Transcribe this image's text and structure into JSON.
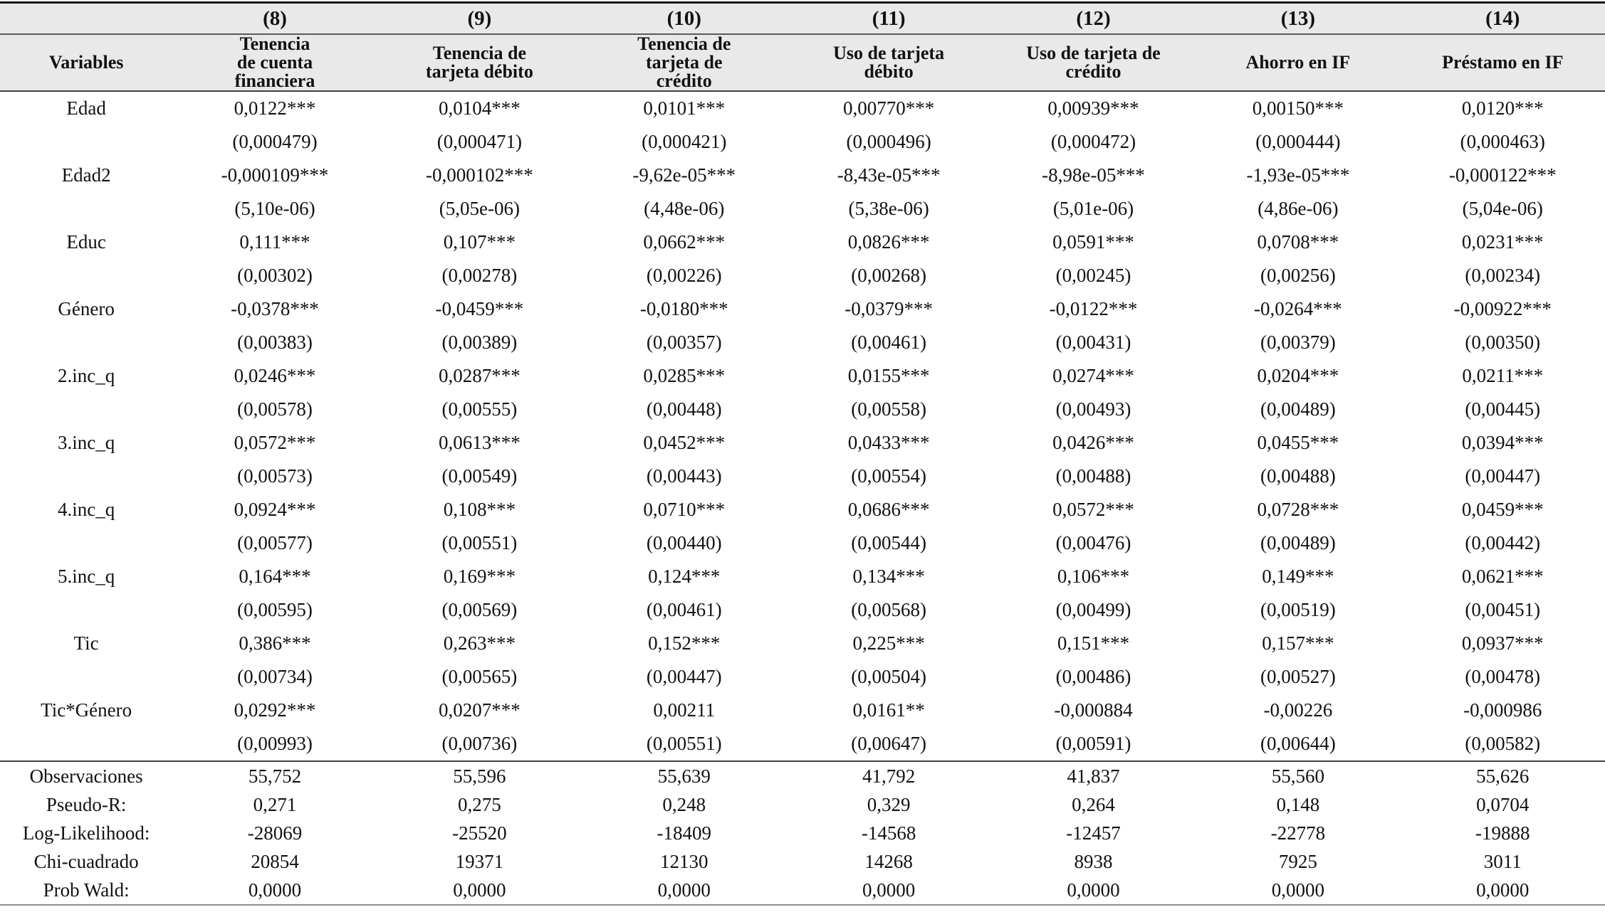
{
  "table": {
    "header_band": [
      "",
      "(8)",
      "(9)",
      "(10)",
      "(11)",
      "(12)",
      "(13)",
      "(14)"
    ],
    "header_row": [
      "Variables",
      "Tenencia\nde cuenta\nfinanciera",
      "Tenencia de\ntarjeta débito",
      "Tenencia de\ntarjeta de\ncrédito",
      "Uso de tarjeta\ndébito",
      "Uso de tarjeta de\ncrédito",
      "Ahorro en IF",
      "Préstamo en IF"
    ],
    "variables": [
      {
        "label": "Edad",
        "coef": [
          "0,0122***",
          "0,0104***",
          "0,0101***",
          "0,00770***",
          "0,00939***",
          "0,00150***",
          "0,0120***"
        ],
        "se": [
          "(0,000479)",
          "(0,000471)",
          "(0,000421)",
          "(0,000496)",
          "(0,000472)",
          "(0,000444)",
          "(0,000463)"
        ]
      },
      {
        "label": "Edad2",
        "coef": [
          "-0,000109***",
          "-0,000102***",
          "-9,62e-05***",
          "-8,43e-05***",
          "-8,98e-05***",
          "-1,93e-05***",
          "-0,000122***"
        ],
        "se": [
          "(5,10e-06)",
          "(5,05e-06)",
          "(4,48e-06)",
          "(5,38e-06)",
          "(5,01e-06)",
          "(4,86e-06)",
          "(5,04e-06)"
        ]
      },
      {
        "label": "Educ",
        "coef": [
          "0,111***",
          "0,107***",
          "0,0662***",
          "0,0826***",
          "0,0591***",
          "0,0708***",
          "0,0231***"
        ],
        "se": [
          "(0,00302)",
          "(0,00278)",
          "(0,00226)",
          "(0,00268)",
          "(0,00245)",
          "(0,00256)",
          "(0,00234)"
        ]
      },
      {
        "label": "Género",
        "coef": [
          "-0,0378***",
          "-0,0459***",
          "-0,0180***",
          "-0,0379***",
          "-0,0122***",
          "-0,0264***",
          "-0,00922***"
        ],
        "se": [
          "(0,00383)",
          "(0,00389)",
          "(0,00357)",
          "(0,00461)",
          "(0,00431)",
          "(0,00379)",
          "(0,00350)"
        ]
      },
      {
        "label": "2.inc_q",
        "coef": [
          "0,0246***",
          "0,0287***",
          "0,0285***",
          "0,0155***",
          "0,0274***",
          "0,0204***",
          "0,0211***"
        ],
        "se": [
          "(0,00578)",
          "(0,00555)",
          "(0,00448)",
          "(0,00558)",
          "(0,00493)",
          "(0,00489)",
          "(0,00445)"
        ]
      },
      {
        "label": "3.inc_q",
        "coef": [
          "0,0572***",
          "0,0613***",
          "0,0452***",
          "0,0433***",
          "0,0426***",
          "0,0455***",
          "0,0394***"
        ],
        "se": [
          "(0,00573)",
          "(0,00549)",
          "(0,00443)",
          "(0,00554)",
          "(0,00488)",
          "(0,00488)",
          "(0,00447)"
        ]
      },
      {
        "label": "4.inc_q",
        "coef": [
          "0,0924***",
          "0,108***",
          "0,0710***",
          "0,0686***",
          "0,0572***",
          "0,0728***",
          "0,0459***"
        ],
        "se": [
          "(0,00577)",
          "(0,00551)",
          "(0,00440)",
          "(0,00544)",
          "(0,00476)",
          "(0,00489)",
          "(0,00442)"
        ]
      },
      {
        "label": "5.inc_q",
        "coef": [
          "0,164***",
          "0,169***",
          "0,124***",
          "0,134***",
          "0,106***",
          "0,149***",
          "0,0621***"
        ],
        "se": [
          "(0,00595)",
          "(0,00569)",
          "(0,00461)",
          "(0,00568)",
          "(0,00499)",
          "(0,00519)",
          "(0,00451)"
        ]
      },
      {
        "label": "Tic",
        "coef": [
          "0,386***",
          "0,263***",
          "0,152***",
          "0,225***",
          "0,151***",
          "0,157***",
          "0,0937***"
        ],
        "se": [
          "(0,00734)",
          "(0,00565)",
          "(0,00447)",
          "(0,00504)",
          "(0,00486)",
          "(0,00527)",
          "(0,00478)"
        ]
      },
      {
        "label": "Tic*Género",
        "coef": [
          "0,0292***",
          "0,0207***",
          "0,00211",
          "0,0161**",
          "-0,000884",
          "-0,00226",
          "-0,000986"
        ],
        "se": [
          "(0,00993)",
          "(0,00736)",
          "(0,00551)",
          "(0,00647)",
          "(0,00591)",
          "(0,00644)",
          "(0,00582)"
        ]
      }
    ],
    "stats": [
      {
        "label": "Observaciones",
        "values": [
          "55,752",
          "55,596",
          "55,639",
          "41,792",
          "41,837",
          "55,560",
          "55,626"
        ]
      },
      {
        "label": "Pseudo-R:",
        "values": [
          "0,271",
          "0,275",
          "0,248",
          "0,329",
          "0,264",
          "0,148",
          "0,0704"
        ]
      },
      {
        "label": "Log-Likelihood:",
        "values": [
          "-28069",
          "-25520",
          "-18409",
          "-14568",
          "-12457",
          "-22778",
          "-19888"
        ]
      },
      {
        "label": "Chi-cuadrado",
        "values": [
          "20854",
          "19371",
          "12130",
          "14268",
          "8938",
          "7925",
          "3011"
        ]
      },
      {
        "label": "Prob Wald:",
        "values": [
          "0,0000",
          "0,0000",
          "0,0000",
          "0,0000",
          "0,0000",
          "0,0000",
          "0,0000"
        ]
      }
    ],
    "colors": {
      "header_background": "#e9e9e9",
      "text": "#121212",
      "rule_dark": "#3f3f3f",
      "rule_mid": "#5a5a5a",
      "rule_light": "#8f8f8f"
    }
  }
}
